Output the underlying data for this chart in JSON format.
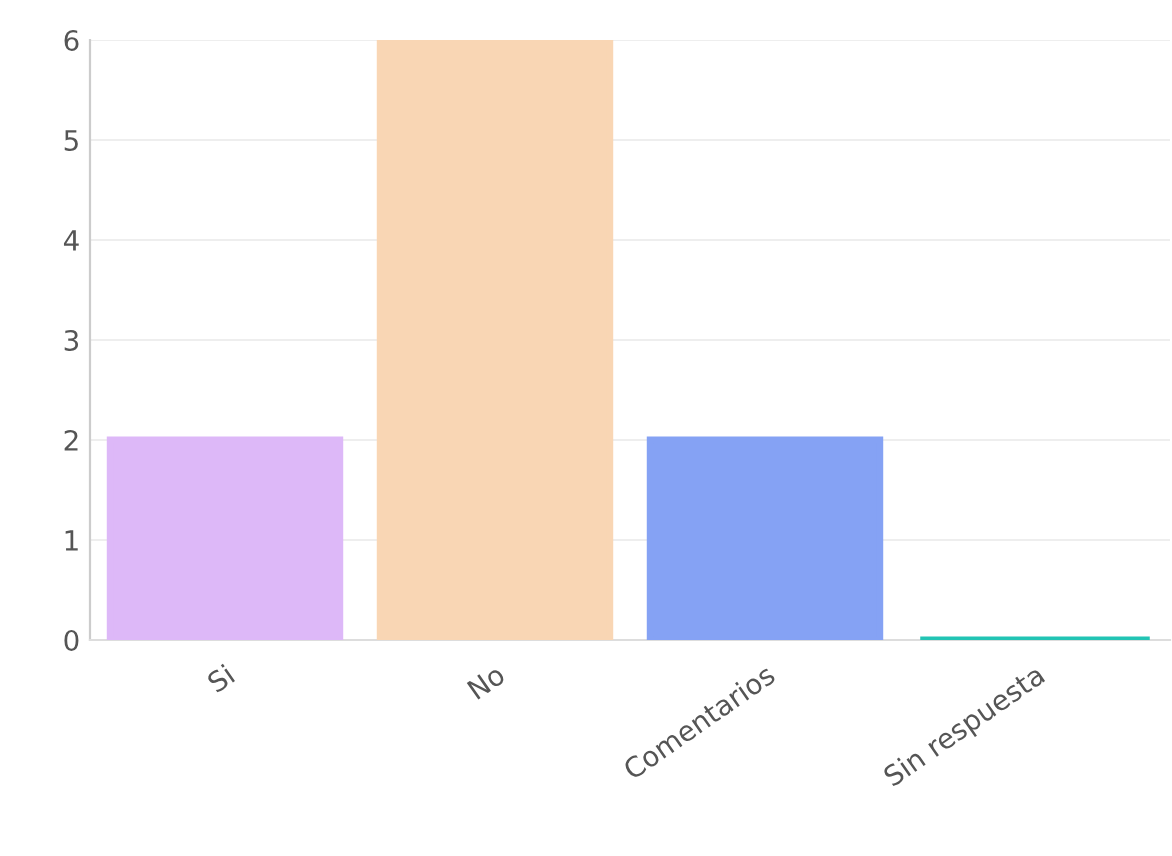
{
  "chart_data": {
    "type": "bar",
    "categories": [
      "Si",
      "No",
      "Comentarios",
      "Sin respuesta"
    ],
    "values": [
      2,
      6,
      2,
      0
    ],
    "colors": [
      "#ddb8f8",
      "#f9d6b4",
      "#85a2f4",
      "#22c4b4"
    ],
    "ylim": [
      0,
      6
    ],
    "yticks": [
      0,
      1,
      2,
      3,
      4,
      5,
      6
    ],
    "grid": "y"
  }
}
